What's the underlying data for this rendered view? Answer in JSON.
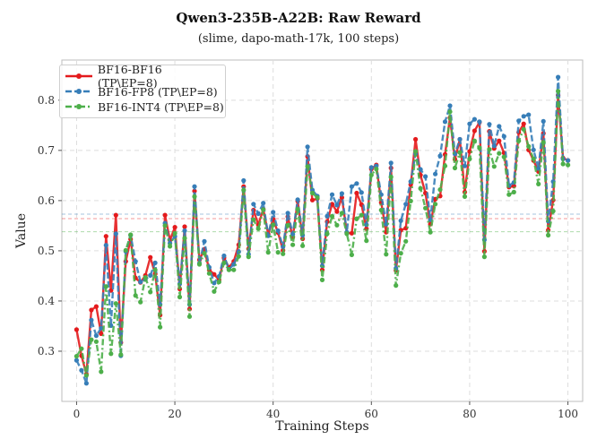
{
  "chart_data": {
    "type": "line",
    "title": "Qwen3-235B-A22B: Raw Reward",
    "subtitle": "(slime, dapo-math-17k, 100 steps)",
    "xlabel": "Training Steps",
    "ylabel": "Value",
    "xlim": [
      -3,
      103
    ],
    "ylim": [
      0.2,
      0.88
    ],
    "xticks": [
      0,
      20,
      40,
      60,
      80,
      100
    ],
    "yticks": [
      0.3,
      0.4,
      0.5,
      0.6,
      0.7,
      0.8
    ],
    "grid": true,
    "legend_position": "top-left",
    "colors": {
      "bf16_bf16": "#e41a1c",
      "bf16_fp8": "#377eb8",
      "bf16_int4": "#4daf4a"
    },
    "x": [
      0,
      1,
      2,
      3,
      4,
      5,
      6,
      7,
      8,
      9,
      10,
      11,
      12,
      13,
      14,
      15,
      16,
      17,
      18,
      19,
      20,
      21,
      22,
      23,
      24,
      25,
      26,
      27,
      28,
      29,
      30,
      31,
      32,
      33,
      34,
      35,
      36,
      37,
      38,
      39,
      40,
      41,
      42,
      43,
      44,
      45,
      46,
      47,
      48,
      49,
      50,
      51,
      52,
      53,
      54,
      55,
      56,
      57,
      58,
      59,
      60,
      61,
      62,
      63,
      64,
      65,
      66,
      67,
      68,
      69,
      70,
      71,
      72,
      73,
      74,
      75,
      76,
      77,
      78,
      79,
      80,
      81,
      82,
      83,
      84,
      85,
      86,
      87,
      88,
      89,
      90,
      91,
      92,
      93,
      94,
      95,
      96,
      97,
      98,
      99,
      100
    ],
    "series": [
      {
        "name": "BF16-BF16 (TP\\EP=8)",
        "color": "#e41a1c",
        "style": "solid",
        "values": [
          0.343,
          0.291,
          0.254,
          0.382,
          0.389,
          0.335,
          0.529,
          0.421,
          0.571,
          0.317,
          0.479,
          0.523,
          0.446,
          0.437,
          0.451,
          0.487,
          0.454,
          0.372,
          0.571,
          0.521,
          0.547,
          0.424,
          0.548,
          0.384,
          0.619,
          0.482,
          0.503,
          0.462,
          0.453,
          0.442,
          0.486,
          0.467,
          0.479,
          0.512,
          0.628,
          0.504,
          0.581,
          0.552,
          0.583,
          0.533,
          0.563,
          0.536,
          0.501,
          0.568,
          0.527,
          0.599,
          0.524,
          0.688,
          0.601,
          0.604,
          0.462,
          0.558,
          0.593,
          0.578,
          0.606,
          0.536,
          0.535,
          0.615,
          0.592,
          0.544,
          0.663,
          0.671,
          0.596,
          0.537,
          0.665,
          0.461,
          0.541,
          0.545,
          0.632,
          0.722,
          0.651,
          0.615,
          0.553,
          0.603,
          0.609,
          0.692,
          0.765,
          0.682,
          0.722,
          0.617,
          0.698,
          0.739,
          0.756,
          0.499,
          0.738,
          0.704,
          0.719,
          0.695,
          0.627,
          0.629,
          0.736,
          0.753,
          0.701,
          0.68,
          0.658,
          0.734,
          0.541,
          0.601,
          0.81,
          0.685,
          0.68
        ]
      },
      {
        "name": "BF16-FP8 (TP\\EP=8)",
        "color": "#377eb8",
        "style": "dashed",
        "values": [
          0.282,
          0.262,
          0.236,
          0.362,
          0.331,
          0.346,
          0.511,
          0.351,
          0.534,
          0.291,
          0.499,
          0.531,
          0.479,
          0.438,
          0.443,
          0.451,
          0.476,
          0.393,
          0.555,
          0.515,
          0.529,
          0.434,
          0.54,
          0.393,
          0.628,
          0.475,
          0.519,
          0.467,
          0.436,
          0.449,
          0.49,
          0.463,
          0.473,
          0.498,
          0.64,
          0.493,
          0.593,
          0.574,
          0.595,
          0.53,
          0.577,
          0.54,
          0.508,
          0.575,
          0.533,
          0.602,
          0.531,
          0.707,
          0.621,
          0.609,
          0.47,
          0.569,
          0.612,
          0.591,
          0.614,
          0.537,
          0.628,
          0.634,
          0.616,
          0.552,
          0.666,
          0.669,
          0.612,
          0.553,
          0.675,
          0.465,
          0.56,
          0.593,
          0.638,
          0.693,
          0.662,
          0.648,
          0.562,
          0.653,
          0.689,
          0.757,
          0.789,
          0.693,
          0.722,
          0.669,
          0.753,
          0.762,
          0.757,
          0.522,
          0.752,
          0.709,
          0.748,
          0.728,
          0.63,
          0.636,
          0.759,
          0.768,
          0.771,
          0.701,
          0.664,
          0.758,
          0.559,
          0.638,
          0.846,
          0.683,
          0.68
        ]
      },
      {
        "name": "BF16-INT4 (TP\\EP=8)",
        "color": "#4daf4a",
        "style": "dashdot",
        "values": [
          0.29,
          0.305,
          0.252,
          0.323,
          0.319,
          0.259,
          0.429,
          0.295,
          0.395,
          0.293,
          0.501,
          0.532,
          0.411,
          0.398,
          0.447,
          0.418,
          0.462,
          0.348,
          0.55,
          0.509,
          0.535,
          0.408,
          0.525,
          0.369,
          0.608,
          0.473,
          0.495,
          0.455,
          0.419,
          0.438,
          0.476,
          0.462,
          0.462,
          0.489,
          0.621,
          0.488,
          0.562,
          0.544,
          0.582,
          0.497,
          0.552,
          0.497,
          0.494,
          0.551,
          0.512,
          0.583,
          0.51,
          0.668,
          0.615,
          0.606,
          0.442,
          0.534,
          0.569,
          0.551,
          0.575,
          0.534,
          0.492,
          0.564,
          0.571,
          0.52,
          0.651,
          0.663,
          0.581,
          0.493,
          0.647,
          0.431,
          0.495,
          0.519,
          0.599,
          0.698,
          0.624,
          0.585,
          0.537,
          0.593,
          0.622,
          0.669,
          0.777,
          0.665,
          0.696,
          0.608,
          0.683,
          0.719,
          0.705,
          0.488,
          0.702,
          0.668,
          0.694,
          0.687,
          0.612,
          0.617,
          0.719,
          0.742,
          0.708,
          0.683,
          0.633,
          0.716,
          0.531,
          0.579,
          0.818,
          0.673,
          0.671
        ]
      }
    ],
    "reference_lines": [
      {
        "color": "#377eb8",
        "y": 0.573
      },
      {
        "color": "#e41a1c",
        "y": 0.564
      },
      {
        "color": "#4daf4a",
        "y": 0.538
      }
    ]
  }
}
